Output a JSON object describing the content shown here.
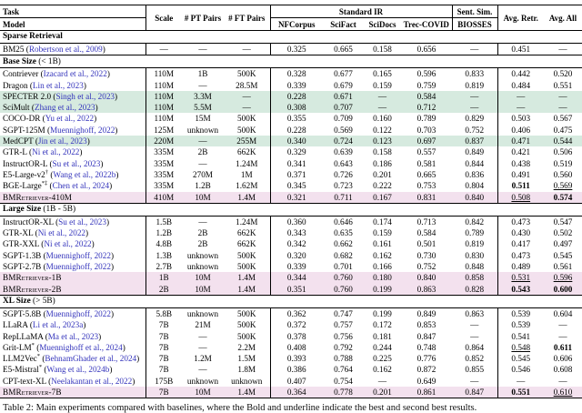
{
  "colors": {
    "highlight_green": "#d6eadf",
    "highlight_pink": "#f3e1ee",
    "citation_blue": "#3333bb"
  },
  "table": {
    "header": {
      "task_label": "Task",
      "model_label": "Model",
      "scale": "Scale",
      "pt_pairs": "# PT Pairs",
      "ft_pairs": "# FT Pairs",
      "group_standard_ir": "Standard IR",
      "group_sent_sim": "Sent. Sim.",
      "sub_columns": [
        "NFCorpus",
        "SciFact",
        "SciDocs",
        "Trec-COVID",
        "BIOSSES"
      ],
      "avg_retr": "Avg. Retr.",
      "avg_all": "Avg. All"
    },
    "sections": [
      {
        "title": "Sparse Retrieval",
        "suffix": "",
        "rows": [
          {
            "model": "BM25",
            "citation": "Robertson et al., 2009",
            "scale": "—",
            "pt_pairs": "—",
            "ft_pairs": "—",
            "values": [
              "0.325",
              "0.665",
              "0.158",
              "0.656",
              "—"
            ],
            "avg_retr": "0.451",
            "avg_retr_style": "",
            "avg_all": "—",
            "avg_all_style": ""
          }
        ]
      },
      {
        "title": "Base Size",
        "suffix": " (< 1B)",
        "rows": [
          {
            "model": "Contriever",
            "citation": "Izacard et al., 2022",
            "scale": "110M",
            "pt_pairs": "1B",
            "ft_pairs": "500K",
            "values": [
              "0.328",
              "0.677",
              "0.165",
              "0.596",
              "0.833"
            ],
            "avg_retr": "0.442",
            "avg_retr_style": "",
            "avg_all": "0.520",
            "avg_all_style": ""
          },
          {
            "model": "Dragon",
            "citation": "Lin et al., 2023",
            "scale": "110M",
            "pt_pairs": "—",
            "ft_pairs": "28.5M",
            "values": [
              "0.339",
              "0.679",
              "0.159",
              "0.759",
              "0.819"
            ],
            "avg_retr": "0.484",
            "avg_retr_style": "",
            "avg_all": "0.551",
            "avg_all_style": ""
          },
          {
            "model": "SPECTER 2.0",
            "citation": "Singh et al., 2023",
            "scale": "110M",
            "pt_pairs": "3.3M",
            "ft_pairs": "—",
            "values": [
              "0.228",
              "0.671",
              "—",
              "0.584",
              "—"
            ],
            "avg_retr": "—",
            "avg_retr_style": "",
            "avg_all": "—",
            "avg_all_style": "",
            "highlight": "green"
          },
          {
            "model": "SciMult",
            "citation": "Zhang et al., 2023",
            "scale": "110M",
            "pt_pairs": "5.5M",
            "ft_pairs": "—",
            "values": [
              "0.308",
              "0.707",
              "—",
              "0.712",
              "—"
            ],
            "avg_retr": "—",
            "avg_retr_style": "",
            "avg_all": "—",
            "avg_all_style": "",
            "highlight": "green"
          },
          {
            "model": "COCO-DR",
            "citation": "Yu et al., 2022",
            "scale": "110M",
            "pt_pairs": "15M",
            "ft_pairs": "500K",
            "values": [
              "0.355",
              "0.709",
              "0.160",
              "0.789",
              "0.829"
            ],
            "avg_retr": "0.503",
            "avg_retr_style": "",
            "avg_all": "0.567",
            "avg_all_style": ""
          },
          {
            "model": "SGPT-125M",
            "citation": "Muennighoff, 2022",
            "scale": "125M",
            "pt_pairs": "unknown",
            "ft_pairs": "500K",
            "values": [
              "0.228",
              "0.569",
              "0.122",
              "0.703",
              "0.752"
            ],
            "avg_retr": "0.406",
            "avg_retr_style": "",
            "avg_all": "0.475",
            "avg_all_style": ""
          },
          {
            "model": "MedCPT",
            "citation": "Jin et al., 2023",
            "scale": "220M",
            "pt_pairs": "—",
            "ft_pairs": "255M",
            "values": [
              "0.340",
              "0.724",
              "0.123",
              "0.697",
              "0.837"
            ],
            "avg_retr": "0.471",
            "avg_retr_style": "",
            "avg_all": "0.544",
            "avg_all_style": "",
            "highlight": "green"
          },
          {
            "model": "GTR-L",
            "citation": "Ni et al., 2022",
            "scale": "335M",
            "pt_pairs": "2B",
            "ft_pairs": "662K",
            "values": [
              "0.329",
              "0.639",
              "0.158",
              "0.557",
              "0.849"
            ],
            "avg_retr": "0.421",
            "avg_retr_style": "",
            "avg_all": "0.506",
            "avg_all_style": ""
          },
          {
            "model": "InstructOR-L",
            "citation": "Su et al., 2023",
            "scale": "335M",
            "pt_pairs": "—",
            "ft_pairs": "1.24M",
            "values": [
              "0.341",
              "0.643",
              "0.186",
              "0.581",
              "0.844"
            ],
            "avg_retr": "0.438",
            "avg_retr_style": "",
            "avg_all": "0.519",
            "avg_all_style": ""
          },
          {
            "model": "E5-Large-v2",
            "sup": "†",
            "citation": "Wang et al., 2022b",
            "scale": "335M",
            "pt_pairs": "270M",
            "ft_pairs": "1M",
            "values": [
              "0.371",
              "0.726",
              "0.201",
              "0.665",
              "0.836"
            ],
            "avg_retr": "0.491",
            "avg_retr_style": "",
            "avg_all": "0.560",
            "avg_all_style": ""
          },
          {
            "model": "BGE-Large",
            "sup": "*‡",
            "citation": "Chen et al., 2024",
            "scale": "335M",
            "pt_pairs": "1.2B",
            "ft_pairs": "1.62M",
            "values": [
              "0.345",
              "0.723",
              "0.222",
              "0.753",
              "0.804"
            ],
            "avg_retr": "0.511",
            "avg_retr_style": "bold",
            "avg_all": "0.569",
            "avg_all_style": "underline"
          },
          {
            "model": "BMRetriever-410M",
            "smallcaps": true,
            "scale": "410M",
            "pt_pairs": "10M",
            "ft_pairs": "1.4M",
            "values": [
              "0.321",
              "0.711",
              "0.167",
              "0.831",
              "0.840"
            ],
            "avg_retr": "0.508",
            "avg_retr_style": "underline",
            "avg_all": "0.574",
            "avg_all_style": "bold",
            "highlight": "pink"
          }
        ]
      },
      {
        "title": "Large Size",
        "suffix": " (1B - 5B)",
        "rows": [
          {
            "model": "InstructOR-XL",
            "citation": "Su et al., 2023",
            "scale": "1.5B",
            "pt_pairs": "—",
            "ft_pairs": "1.24M",
            "values": [
              "0.360",
              "0.646",
              "0.174",
              "0.713",
              "0.842"
            ],
            "avg_retr": "0.473",
            "avg_retr_style": "",
            "avg_all": "0.547",
            "avg_all_style": ""
          },
          {
            "model": "GTR-XL",
            "citation": "Ni et al., 2022",
            "scale": "1.2B",
            "pt_pairs": "2B",
            "ft_pairs": "662K",
            "values": [
              "0.343",
              "0.635",
              "0.159",
              "0.584",
              "0.789"
            ],
            "avg_retr": "0.430",
            "avg_retr_style": "",
            "avg_all": "0.502",
            "avg_all_style": ""
          },
          {
            "model": "GTR-XXL",
            "citation": "Ni et al., 2022",
            "scale": "4.8B",
            "pt_pairs": "2B",
            "ft_pairs": "662K",
            "values": [
              "0.342",
              "0.662",
              "0.161",
              "0.501",
              "0.819"
            ],
            "avg_retr": "0.417",
            "avg_retr_style": "",
            "avg_all": "0.497",
            "avg_all_style": ""
          },
          {
            "model": "SGPT-1.3B",
            "citation": "Muennighoff, 2022",
            "scale": "1.3B",
            "pt_pairs": "unknown",
            "ft_pairs": "500K",
            "values": [
              "0.320",
              "0.682",
              "0.162",
              "0.730",
              "0.830"
            ],
            "avg_retr": "0.473",
            "avg_retr_style": "",
            "avg_all": "0.545",
            "avg_all_style": ""
          },
          {
            "model": "SGPT-2.7B",
            "citation": "Muennighoff, 2022",
            "scale": "2.7B",
            "pt_pairs": "unknown",
            "ft_pairs": "500K",
            "values": [
              "0.339",
              "0.701",
              "0.166",
              "0.752",
              "0.848"
            ],
            "avg_retr": "0.489",
            "avg_retr_style": "",
            "avg_all": "0.561",
            "avg_all_style": ""
          },
          {
            "model": "BMRetriever-1B",
            "smallcaps": true,
            "scale": "1B",
            "pt_pairs": "10M",
            "ft_pairs": "1.4M",
            "values": [
              "0.344",
              "0.760",
              "0.180",
              "0.840",
              "0.858"
            ],
            "avg_retr": "0.531",
            "avg_retr_style": "underline",
            "avg_all": "0.596",
            "avg_all_style": "underline",
            "highlight": "pink"
          },
          {
            "model": "BMRetriever-2B",
            "smallcaps": true,
            "scale": "2B",
            "pt_pairs": "10M",
            "ft_pairs": "1.4M",
            "values": [
              "0.351",
              "0.760",
              "0.199",
              "0.863",
              "0.828"
            ],
            "avg_retr": "0.543",
            "avg_retr_style": "bold",
            "avg_all": "0.600",
            "avg_all_style": "bold",
            "highlight": "pink"
          }
        ]
      },
      {
        "title": "XL Size",
        "suffix": " (> 5B)",
        "rows": [
          {
            "model": "SGPT-5.8B",
            "citation": "Muennighoff, 2022",
            "scale": "5.8B",
            "pt_pairs": "unknown",
            "ft_pairs": "500K",
            "values": [
              "0.362",
              "0.747",
              "0.199",
              "0.849",
              "0.863"
            ],
            "avg_retr": "0.539",
            "avg_retr_style": "",
            "avg_all": "0.604",
            "avg_all_style": ""
          },
          {
            "model": "LLaRA",
            "citation": "Li et al., 2023a",
            "scale": "7B",
            "pt_pairs": "21M",
            "ft_pairs": "500K",
            "values": [
              "0.372",
              "0.757",
              "0.172",
              "0.853",
              "—"
            ],
            "avg_retr": "0.539",
            "avg_retr_style": "",
            "avg_all": "—",
            "avg_all_style": ""
          },
          {
            "model": "RepLLaMA",
            "citation": "Ma et al., 2023",
            "scale": "7B",
            "pt_pairs": "—",
            "ft_pairs": "500K",
            "values": [
              "0.378",
              "0.756",
              "0.181",
              "0.847",
              "—"
            ],
            "avg_retr": "0.541",
            "avg_retr_style": "",
            "avg_all": "—",
            "avg_all_style": ""
          },
          {
            "model": "Grit-LM",
            "sup": "*",
            "citation": "Muennighoff et al., 2024",
            "scale": "7B",
            "pt_pairs": "—",
            "ft_pairs": "2.2M",
            "values": [
              "0.408",
              "0.792",
              "0.244",
              "0.748",
              "0.864"
            ],
            "avg_retr": "0.548",
            "avg_retr_style": "underline",
            "avg_all": "0.611",
            "avg_all_style": "bold"
          },
          {
            "model": "LLM2Vec",
            "sup": "*",
            "citation": "BehnamGhader et al., 2024",
            "scale": "7B",
            "pt_pairs": "1.2M",
            "ft_pairs": "1.5M",
            "values": [
              "0.393",
              "0.788",
              "0.225",
              "0.776",
              "0.852"
            ],
            "avg_retr": "0.545",
            "avg_retr_style": "",
            "avg_all": "0.606",
            "avg_all_style": ""
          },
          {
            "model": "E5-Mistral",
            "sup": "*",
            "citation": "Wang et al., 2024b",
            "scale": "7B",
            "pt_pairs": "—",
            "ft_pairs": "1.8M",
            "values": [
              "0.386",
              "0.764",
              "0.162",
              "0.872",
              "0.855"
            ],
            "avg_retr": "0.546",
            "avg_retr_style": "",
            "avg_all": "0.608",
            "avg_all_style": ""
          },
          {
            "model": "CPT-text-XL",
            "citation": "Neelakantan et al., 2022",
            "scale": "175B",
            "pt_pairs": "unknown",
            "ft_pairs": "unknown",
            "values": [
              "0.407",
              "0.754",
              "—",
              "0.649",
              "—"
            ],
            "avg_retr": "—",
            "avg_retr_style": "",
            "avg_all": "—",
            "avg_all_style": ""
          },
          {
            "model": "BMRetriever-7B",
            "smallcaps": true,
            "scale": "7B",
            "pt_pairs": "10M",
            "ft_pairs": "1.4M",
            "values": [
              "0.364",
              "0.778",
              "0.201",
              "0.861",
              "0.847"
            ],
            "avg_retr": "0.551",
            "avg_retr_style": "bold",
            "avg_all": "0.610",
            "avg_all_style": "underline",
            "highlight": "pink"
          }
        ]
      }
    ]
  },
  "caption": "Table 2: Main experiments compared with baselines, where the Bold and underline indicate the best and second best results."
}
